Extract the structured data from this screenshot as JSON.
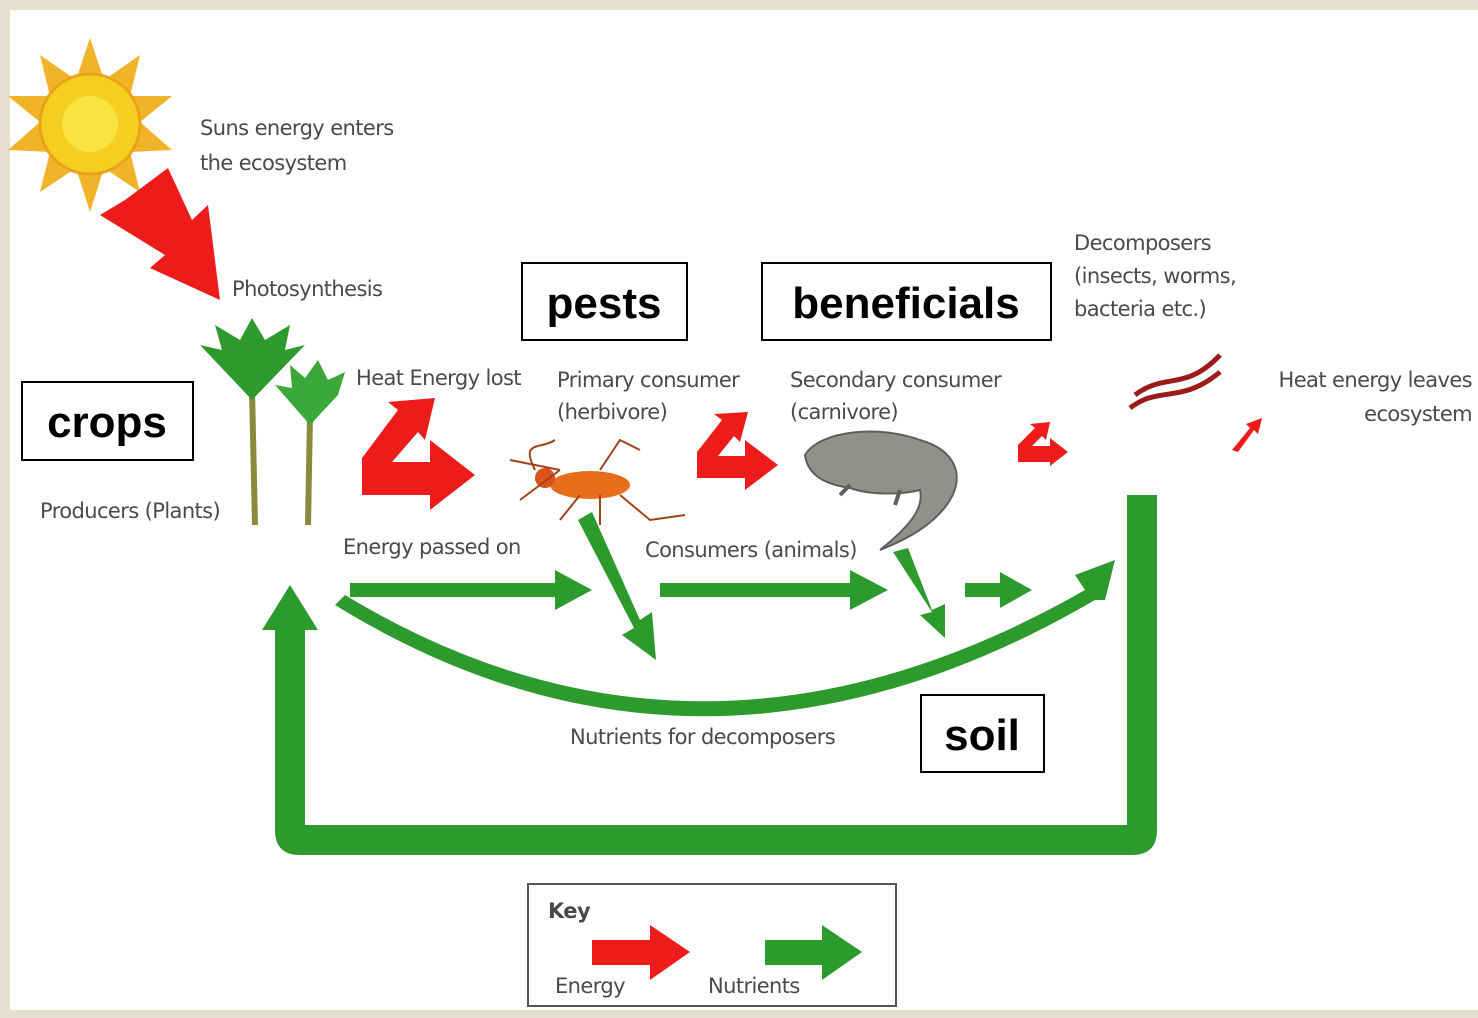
{
  "sun_text": {
    "lines": [
      "Suns energy enters",
      "the ecosystem"
    ]
  },
  "photosynthesis": "Photosynthesis",
  "decomposers": {
    "lines": [
      "Decomposers",
      "(insects, worms,",
      "bacteria etc.)"
    ]
  },
  "heat_lost": "Heat Energy lost",
  "primary_consumer": {
    "lines": [
      "Primary consumer",
      "(herbivore)"
    ]
  },
  "secondary_consumer": {
    "lines": [
      "Secondary consumer",
      "(carnivore)"
    ]
  },
  "heat_leaves": {
    "lines": [
      "Heat energy leaves",
      "ecosystem"
    ]
  },
  "producers": "Producers (Plants)",
  "energy_passed": "Energy passed on",
  "consumers": "Consumers (animals)",
  "nutrients_decomposers": "Nutrients for decomposers",
  "overlay_labels": {
    "crops": "crops",
    "pests": "pests",
    "beneficials": "beneficials",
    "soil": "soil"
  },
  "key": {
    "title": "Key",
    "energy": "Energy",
    "nutrients": "Nutrients"
  }
}
